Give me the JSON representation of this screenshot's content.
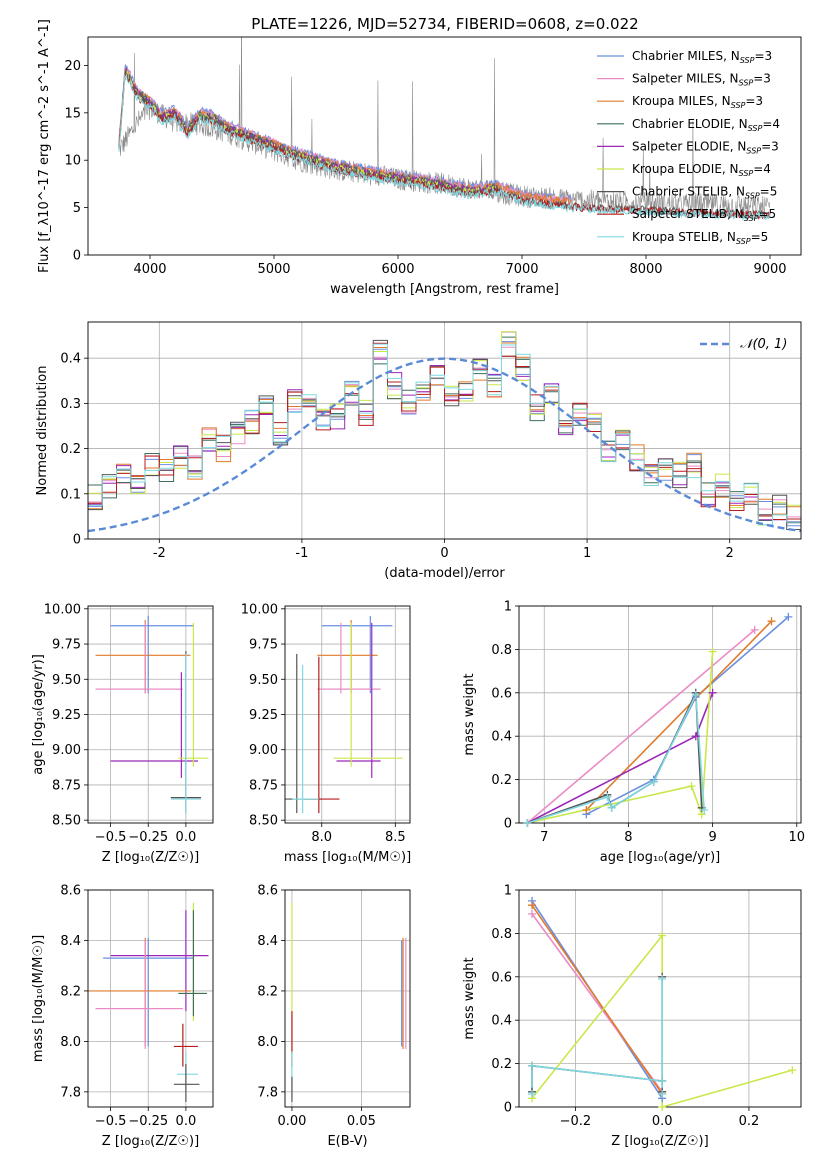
{
  "figure": {
    "title": "PLATE=1226, MJD=52734, FIBERID=0608, z=0.022"
  },
  "colors": {
    "Chabrier MILES": "#6a8fe0",
    "Salpeter MILES": "#e98bc5",
    "Kroupa MILES": "#e07a2a",
    "Chabrier ELODIE": "#3f6e5c",
    "Salpeter ELODIE": "#9b27b8",
    "Kroupa ELODIE": "#c8e84a",
    "Chabrier STELIB": "#555555",
    "Salpeter STELIB": "#b81d1d",
    "Kroupa STELIB": "#7fd8e0",
    "data": "#8a8a8a",
    "normal": "#5b8bd6",
    "grid": "#b0b0b0"
  },
  "chart_data": [
    {
      "id": "spectrum",
      "type": "line",
      "xlabel": "wavelength [Angstrom, rest frame]",
      "ylabel": "Flux [f_λ10^-17 erg cm^-2 s^-1 A^-1]",
      "xlim": [
        3500,
        9250
      ],
      "ylim": [
        0,
        23
      ],
      "xticks": [
        4000,
        5000,
        6000,
        7000,
        8000,
        9000
      ],
      "yticks": [
        0,
        5,
        10,
        15,
        20
      ],
      "grid": false,
      "legend_position": "top-right",
      "legend": [
        {
          "name": "Chabrier MILES",
          "label": "Chabrier MILES, N",
          "sub": "SSP",
          "suffix": "=3"
        },
        {
          "name": "Salpeter MILES",
          "label": "Salpeter MILES, N",
          "sub": "SSP",
          "suffix": "=3"
        },
        {
          "name": "Kroupa MILES",
          "label": "Kroupa MILES, N",
          "sub": "SSP",
          "suffix": "=3"
        },
        {
          "name": "Chabrier ELODIE",
          "label": "Chabrier ELODIE, N",
          "sub": "SSP",
          "suffix": "=4"
        },
        {
          "name": "Salpeter ELODIE",
          "label": "Salpeter ELODIE, N",
          "sub": "SSP",
          "suffix": "=3"
        },
        {
          "name": "Kroupa ELODIE",
          "label": "Kroupa ELODIE, N",
          "sub": "SSP",
          "suffix": "=4"
        },
        {
          "name": "Chabrier STELIB",
          "label": "Chabrier STELIB, N",
          "sub": "SSP",
          "suffix": "=5"
        },
        {
          "name": "Salpeter STELIB",
          "label": "Salpeter STELIB, N",
          "sub": "SSP",
          "suffix": "=5"
        },
        {
          "name": "Kroupa STELIB",
          "label": "Kroupa STELIB, N",
          "sub": "SSP",
          "suffix": "=5"
        }
      ],
      "model_continuum": {
        "wavelength": [
          3750,
          3800,
          3900,
          4000,
          4100,
          4200,
          4300,
          4400,
          4500,
          4600,
          4800,
          5000,
          5200,
          5500,
          5800,
          6000,
          6300,
          6600,
          6800,
          7000,
          7200,
          7400,
          7600,
          7800,
          8000,
          8500,
          9000
        ],
        "flux": [
          12.0,
          20.0,
          17.5,
          16.5,
          15.0,
          15.5,
          13.5,
          15.2,
          15.0,
          14.0,
          13.0,
          12.0,
          11.0,
          9.8,
          9.0,
          8.6,
          8.0,
          7.2,
          7.6,
          6.6,
          6.2,
          5.9,
          5.7,
          5.6,
          5.5,
          5.2,
          5.0
        ]
      },
      "data_continuum": {
        "wavelength": [
          3750,
          3900,
          4000,
          4200,
          4400,
          4600,
          4800,
          5000,
          5200,
          5500,
          5800,
          6000,
          6300,
          6600,
          7000,
          7400,
          7800,
          8200,
          8600,
          9000
        ],
        "flux": [
          11.0,
          14.0,
          15.5,
          14.0,
          13.8,
          13.0,
          12.0,
          11.0,
          10.0,
          9.0,
          8.5,
          8.0,
          7.6,
          7.0,
          6.2,
          5.8,
          5.6,
          5.4,
          5.3,
          5.1
        ]
      }
    },
    {
      "id": "residuals",
      "type": "line",
      "xlabel": "(data-model)/error",
      "ylabel": "Normed distribution",
      "xlim": [
        -2.5,
        2.5
      ],
      "ylim": [
        0,
        0.48
      ],
      "xticks": [
        -2,
        -1,
        0,
        1,
        2
      ],
      "yticks": [
        0.0,
        0.1,
        0.2,
        0.3,
        0.4
      ],
      "grid": true,
      "legend_position": "top-right",
      "legend_label": "𝒩(0, 1)",
      "bin_width": 0.1,
      "bin_start": -2.5,
      "histogram": [
        0.09,
        0.12,
        0.14,
        0.12,
        0.16,
        0.15,
        0.18,
        0.16,
        0.22,
        0.2,
        0.24,
        0.26,
        0.29,
        0.23,
        0.3,
        0.32,
        0.26,
        0.27,
        0.32,
        0.28,
        0.41,
        0.34,
        0.3,
        0.33,
        0.36,
        0.32,
        0.33,
        0.38,
        0.34,
        0.43,
        0.38,
        0.29,
        0.32,
        0.25,
        0.28,
        0.25,
        0.2,
        0.22,
        0.18,
        0.14,
        0.15,
        0.14,
        0.16,
        0.1,
        0.12,
        0.08,
        0.1,
        0.06,
        0.07,
        0.05
      ]
    },
    {
      "id": "age_vs_Z",
      "type": "scatter",
      "xlabel": "Z [log₁₀(Z/Z☉)]",
      "ylabel": "age  [log₁₀(age/yr)]",
      "xlim": [
        -0.65,
        0.18
      ],
      "ylim": [
        8.48,
        10.02
      ],
      "xticks": [
        -0.5,
        -0.25,
        0.0
      ],
      "xticklabels": [
        "−0.5",
        "−0.25",
        "0.0"
      ],
      "yticks": [
        8.5,
        8.75,
        9.0,
        9.25,
        9.5,
        9.75,
        10.0
      ],
      "yticklabels": [
        "8.50",
        "8.75",
        "9.00",
        "9.25",
        "9.50",
        "9.75",
        "10.00"
      ],
      "grid": true,
      "points": [
        {
          "series": "Chabrier MILES",
          "x": -0.25,
          "y": 9.88,
          "xlo": -0.5,
          "xhi": 0.05,
          "ylo": 9.4,
          "yhi": 9.95
        },
        {
          "series": "Kroupa MILES",
          "x": -0.27,
          "y": 9.67,
          "xlo": -0.6,
          "xhi": 0.03,
          "ylo": 9.4,
          "yhi": 9.92
        },
        {
          "series": "Salpeter MILES",
          "x": -0.27,
          "y": 9.43,
          "xlo": -0.6,
          "xhi": -0.02,
          "ylo": 9.4,
          "yhi": 9.9
        },
        {
          "series": "Salpeter ELODIE",
          "x": -0.03,
          "y": 8.92,
          "xlo": -0.5,
          "xhi": 0.08,
          "ylo": 8.8,
          "yhi": 9.55
        },
        {
          "series": "Kroupa ELODIE",
          "x": 0.05,
          "y": 8.94,
          "xlo": -0.05,
          "xhi": 0.15,
          "ylo": 8.88,
          "yhi": 9.9
        },
        {
          "series": "Chabrier STELIB",
          "x": 0.0,
          "y": 8.66,
          "xlo": -0.1,
          "xhi": 0.1,
          "ylo": 8.55,
          "yhi": 9.7
        },
        {
          "series": "Kroupa STELIB",
          "x": 0.0,
          "y": 8.65,
          "xlo": -0.1,
          "xhi": 0.1,
          "ylo": 8.55,
          "yhi": 9.68
        }
      ]
    },
    {
      "id": "age_vs_mass",
      "type": "scatter",
      "xlabel": "mass [log₁₀(M/M☉)]",
      "ylabel": "",
      "xlim": [
        7.75,
        8.6
      ],
      "ylim": [
        8.48,
        10.02
      ],
      "xticks": [
        8.0,
        8.5
      ],
      "xticklabels": [
        "8.0",
        "8.5"
      ],
      "yticks": [
        8.5,
        8.75,
        9.0,
        9.25,
        9.5,
        9.75,
        10.0
      ],
      "yticklabels": [
        "8.50",
        "8.75",
        "9.00",
        "9.25",
        "9.50",
        "9.75",
        "10.00"
      ],
      "grid": true,
      "points": [
        {
          "series": "Chabrier MILES",
          "x": 8.33,
          "y": 9.88,
          "xlo": 8.0,
          "xhi": 8.48,
          "ylo": 9.4,
          "yhi": 9.95
        },
        {
          "series": "Kroupa MILES",
          "x": 8.2,
          "y": 9.67,
          "xlo": 7.97,
          "xhi": 8.38,
          "ylo": 9.4,
          "yhi": 9.92
        },
        {
          "series": "Salpeter MILES",
          "x": 8.13,
          "y": 9.43,
          "xlo": 7.97,
          "xhi": 8.4,
          "ylo": 9.4,
          "yhi": 9.9
        },
        {
          "series": "Salpeter ELODIE",
          "x": 8.34,
          "y": 8.92,
          "xlo": 8.1,
          "xhi": 8.4,
          "ylo": 8.8,
          "yhi": 9.9
        },
        {
          "series": "Kroupa ELODIE",
          "x": 8.2,
          "y": 8.94,
          "xlo": 8.08,
          "xhi": 8.55,
          "ylo": 8.88,
          "yhi": 9.9
        },
        {
          "series": "Chabrier STELIB",
          "x": 7.83,
          "y": 8.65,
          "xlo": 7.75,
          "xhi": 8.0,
          "ylo": 8.55,
          "yhi": 9.68
        },
        {
          "series": "Salpeter STELIB",
          "x": 7.98,
          "y": 8.65,
          "xlo": 7.88,
          "xhi": 8.12,
          "ylo": 8.55,
          "yhi": 9.66
        },
        {
          "series": "Kroupa STELIB",
          "x": 7.87,
          "y": 8.65,
          "xlo": 7.8,
          "xhi": 7.98,
          "ylo": 8.55,
          "yhi": 9.6
        }
      ]
    },
    {
      "id": "mass_weight_vs_age",
      "type": "line",
      "xlabel": "age  [log₁₀(age/yr)]",
      "ylabel": "mass weight",
      "xlim": [
        6.7,
        10.05
      ],
      "ylim": [
        0,
        1.0
      ],
      "xticks": [
        7,
        8,
        9,
        10
      ],
      "yticks": [
        0.0,
        0.2,
        0.4,
        0.6,
        0.8,
        1.0
      ],
      "grid": true,
      "series": [
        {
          "name": "Chabrier MILES",
          "x": [
            7.5,
            8.3,
            8.8,
            9.9
          ],
          "y": [
            0.04,
            0.2,
            0.58,
            0.95
          ]
        },
        {
          "name": "Salpeter MILES",
          "x": [
            6.8,
            9.5
          ],
          "y": [
            0.0,
            0.89
          ]
        },
        {
          "name": "Kroupa MILES",
          "x": [
            7.5,
            9.7
          ],
          "y": [
            0.06,
            0.93
          ]
        },
        {
          "name": "Salpeter ELODIE",
          "x": [
            6.8,
            8.8,
            9.0
          ],
          "y": [
            0.0,
            0.4,
            0.6
          ]
        },
        {
          "name": "Kroupa ELODIE",
          "x": [
            6.8,
            8.75,
            8.87,
            9.0
          ],
          "y": [
            0.0,
            0.17,
            0.04,
            0.79
          ]
        },
        {
          "name": "Chabrier STELIB",
          "x": [
            6.8,
            7.75,
            7.8,
            8.3,
            8.8,
            8.87
          ],
          "y": [
            0.0,
            0.13,
            0.07,
            0.19,
            0.6,
            0.07
          ]
        },
        {
          "name": "Kroupa STELIB",
          "x": [
            6.8,
            7.75,
            7.8,
            8.3,
            8.8,
            8.9
          ],
          "y": [
            0.0,
            0.12,
            0.07,
            0.19,
            0.59,
            0.06
          ]
        }
      ]
    },
    {
      "id": "mass_vs_Z",
      "type": "scatter",
      "xlabel": "Z [log₁₀(Z/Z☉)]",
      "ylabel": "mass [log₁₀(M/M☉)]",
      "xlim": [
        -0.65,
        0.18
      ],
      "ylim": [
        7.74,
        8.6
      ],
      "xticks": [
        -0.5,
        -0.25,
        0.0
      ],
      "xticklabels": [
        "−0.5",
        "−0.25",
        "0.0"
      ],
      "yticks": [
        7.8,
        8.0,
        8.2,
        8.4,
        8.6
      ],
      "yticklabels": [
        "7.8",
        "8.0",
        "8.2",
        "8.4",
        "8.6"
      ],
      "grid": true,
      "points": [
        {
          "series": "Chabrier MILES",
          "x": -0.25,
          "y": 8.33,
          "xlo": -0.55,
          "xhi": 0.05,
          "ylo": 7.98,
          "yhi": 8.41
        },
        {
          "series": "Salpeter ELODIE",
          "x": 0.0,
          "y": 8.34,
          "xlo": -0.5,
          "xhi": 0.15,
          "ylo": 8.12,
          "yhi": 8.52
        },
        {
          "series": "Kroupa MILES",
          "x": -0.27,
          "y": 8.2,
          "xlo": -0.65,
          "xhi": 0.03,
          "ylo": 7.98,
          "yhi": 8.41
        },
        {
          "series": "Kroupa ELODIE",
          "x": 0.05,
          "y": 8.19,
          "xlo": -0.05,
          "xhi": 0.14,
          "ylo": 8.08,
          "yhi": 8.55
        },
        {
          "series": "Chabrier ELODIE",
          "x": 0.05,
          "y": 8.19,
          "xlo": -0.05,
          "xhi": 0.14,
          "ylo": 8.1,
          "yhi": 8.52
        },
        {
          "series": "Salpeter MILES",
          "x": -0.27,
          "y": 8.13,
          "xlo": -0.6,
          "xhi": -0.02,
          "ylo": 7.97,
          "yhi": 8.4
        },
        {
          "series": "Salpeter STELIB",
          "x": -0.02,
          "y": 7.98,
          "xlo": -0.08,
          "xhi": 0.08,
          "ylo": 7.9,
          "yhi": 8.07
        },
        {
          "series": "Kroupa STELIB",
          "x": 0.0,
          "y": 7.87,
          "xlo": -0.06,
          "xhi": 0.08,
          "ylo": 7.8,
          "yhi": 7.96
        },
        {
          "series": "Chabrier STELIB",
          "x": 0.0,
          "y": 7.83,
          "xlo": -0.08,
          "xhi": 0.09,
          "ylo": 7.76,
          "yhi": 7.91
        }
      ]
    },
    {
      "id": "mass_vs_ebv",
      "type": "scatter",
      "xlabel": "E(B-V)",
      "ylabel": "",
      "xlim": [
        -0.005,
        0.085
      ],
      "ylim": [
        7.74,
        8.6
      ],
      "xticks": [
        0.0,
        0.05
      ],
      "xticklabels": [
        "0.00",
        "0.05"
      ],
      "yticks": [
        7.8,
        8.0,
        8.2,
        8.4,
        8.6
      ],
      "yticklabels": [
        "7.8",
        "8.0",
        "8.2",
        "8.4",
        "8.6"
      ],
      "grid": true,
      "points": [
        {
          "series": "Kroupa ELODIE",
          "x": 0.0,
          "y": 8.2,
          "xlo": 0.0,
          "xhi": 0.0,
          "ylo": 7.95,
          "yhi": 8.55
        },
        {
          "series": "Salpeter STELIB",
          "x": 0.0,
          "y": 7.98,
          "xlo": 0.0,
          "xhi": 0.0,
          "ylo": 7.9,
          "yhi": 8.12
        },
        {
          "series": "Kroupa STELIB",
          "x": 0.0,
          "y": 7.87,
          "xlo": 0.0,
          "xhi": 0.0,
          "ylo": 7.78,
          "yhi": 7.96
        },
        {
          "series": "Chabrier STELIB",
          "x": 0.0,
          "y": 7.8,
          "xlo": 0.0,
          "xhi": 0.0,
          "ylo": 7.76,
          "yhi": 7.86
        },
        {
          "series": "Kroupa MILES",
          "x": 0.08,
          "y": 8.2,
          "xlo": 0.08,
          "xhi": 0.08,
          "ylo": 7.97,
          "yhi": 8.41
        },
        {
          "series": "Salpeter MILES",
          "x": 0.082,
          "y": 8.18,
          "xlo": 0.082,
          "xhi": 0.082,
          "ylo": 7.97,
          "yhi": 8.41
        },
        {
          "series": "Chabrier MILES",
          "x": 0.079,
          "y": 8.2,
          "xlo": 0.079,
          "xhi": 0.079,
          "ylo": 7.98,
          "yhi": 8.4
        }
      ]
    },
    {
      "id": "mass_weight_vs_Z",
      "type": "line",
      "xlabel": "Z [log₁₀(Z/Z☉)]",
      "ylabel": "mass weight",
      "xlim": [
        -0.33,
        0.32
      ],
      "ylim": [
        0,
        1.0
      ],
      "xticks": [
        -0.2,
        0.0,
        0.2
      ],
      "xticklabels": [
        "−0.2",
        "0.0",
        "0.2"
      ],
      "yticks": [
        0.0,
        0.2,
        0.4,
        0.6,
        0.8,
        1.0
      ],
      "grid": true,
      "series": [
        {
          "name": "Chabrier MILES",
          "x": [
            -0.3,
            0.0
          ],
          "y": [
            0.95,
            0.04
          ]
        },
        {
          "name": "Salpeter MILES",
          "x": [
            -0.3,
            0.0
          ],
          "y": [
            0.89,
            0.07
          ]
        },
        {
          "name": "Kroupa MILES",
          "x": [
            -0.3,
            0.0
          ],
          "y": [
            0.93,
            0.06
          ]
        },
        {
          "name": "Kroupa ELODIE",
          "x": [
            -0.3,
            0.0,
            0.0,
            0.3
          ],
          "y": [
            0.04,
            0.79,
            0.0,
            0.17
          ]
        },
        {
          "name": "Chabrier STELIB",
          "x": [
            -0.3,
            -0.3,
            0.0,
            0.0,
            0.0
          ],
          "y": [
            0.07,
            0.19,
            0.12,
            0.6,
            0.07
          ]
        },
        {
          "name": "Kroupa STELIB",
          "x": [
            -0.3,
            -0.3,
            0.0,
            0.0,
            0.0
          ],
          "y": [
            0.06,
            0.19,
            0.12,
            0.59,
            0.06
          ]
        }
      ]
    }
  ]
}
